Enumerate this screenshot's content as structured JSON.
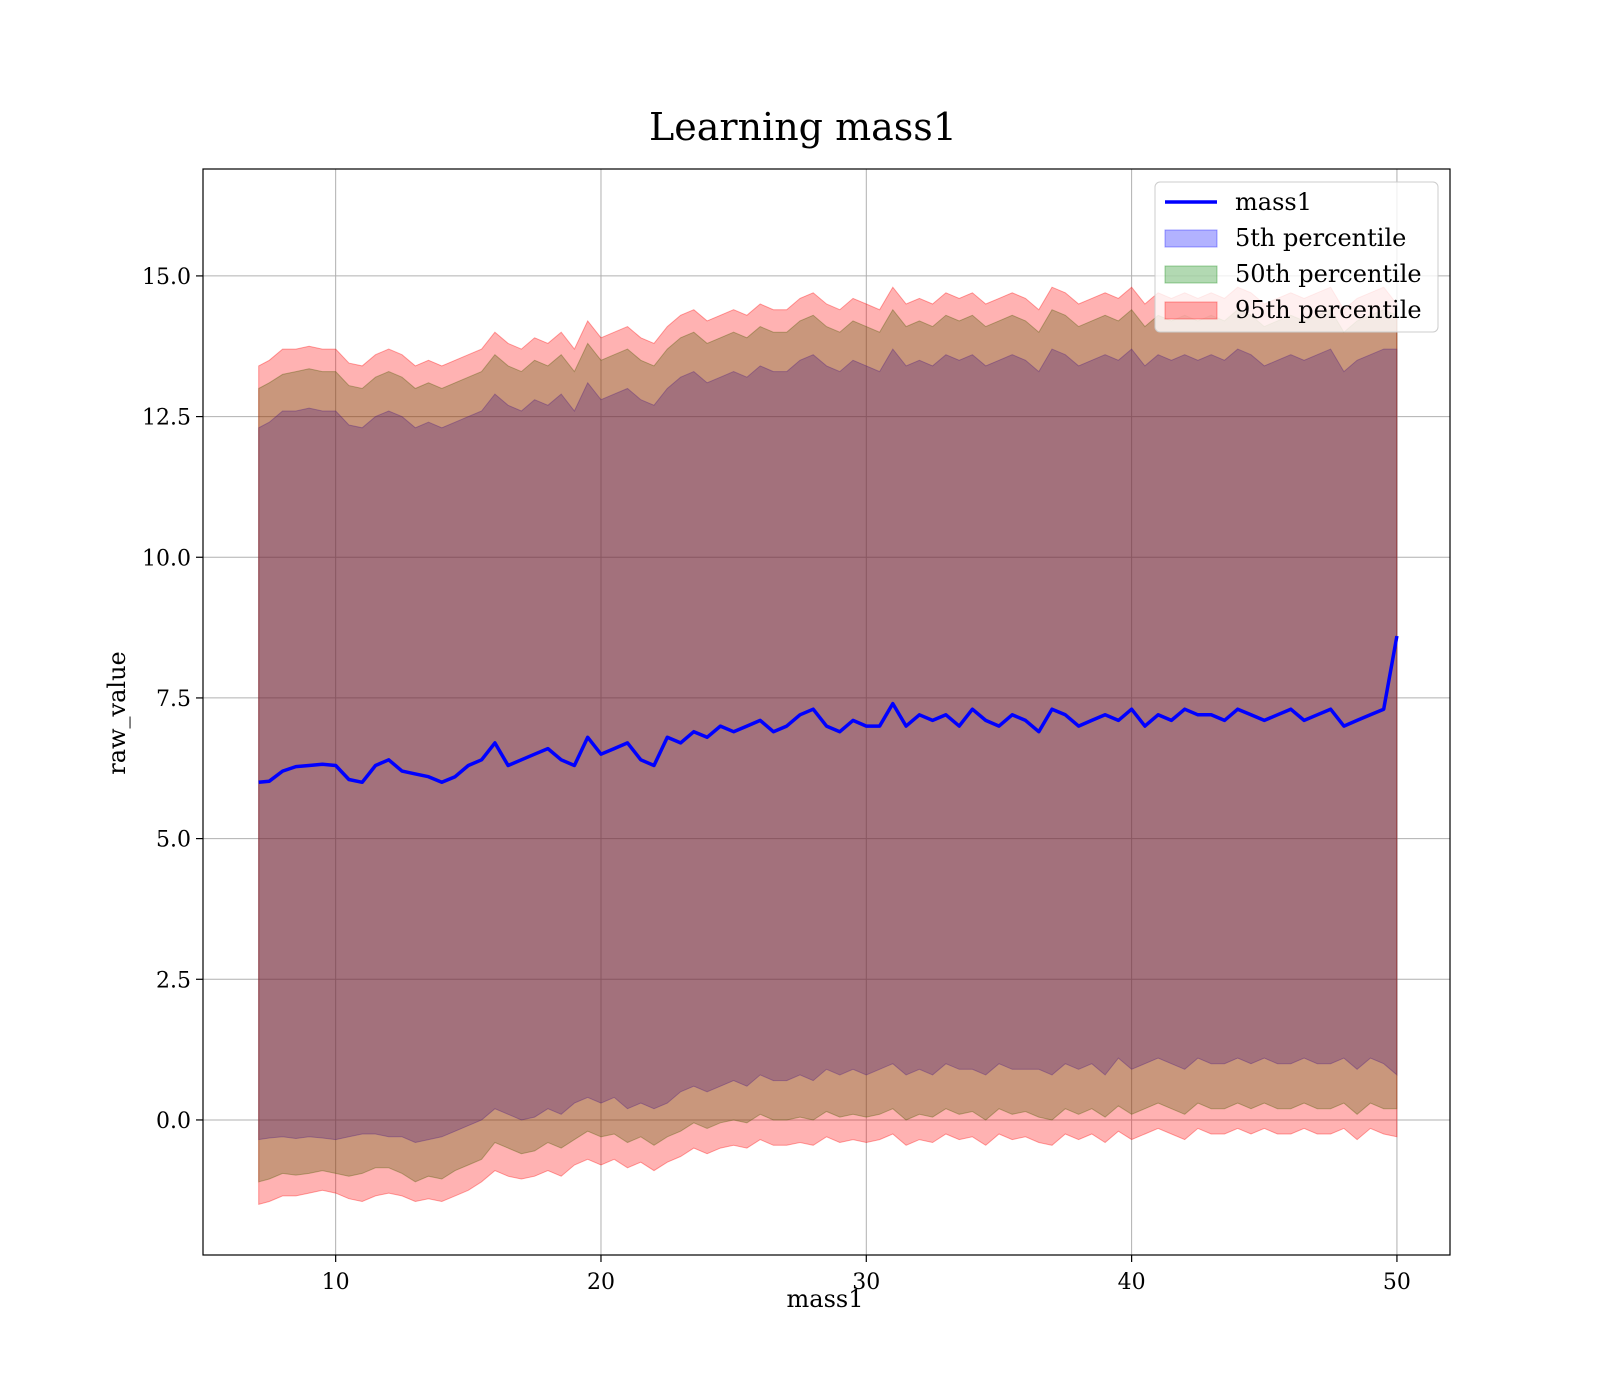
{
  "chart_data": {
    "type": "area",
    "title": "Learning mass1",
    "xlabel": "mass1",
    "ylabel": "raw_value",
    "xlim": [
      5,
      52
    ],
    "ylim": [
      -2.4,
      16.9
    ],
    "xticks": [
      10,
      20,
      30,
      40,
      50
    ],
    "yticks": [
      0.0,
      2.5,
      5.0,
      7.5,
      10.0,
      12.5,
      15.0
    ],
    "xtick_labels": [
      "10",
      "20",
      "30",
      "40",
      "50"
    ],
    "ytick_labels": [
      "0.0",
      "2.5",
      "5.0",
      "7.5",
      "10.0",
      "12.5",
      "15.0"
    ],
    "grid": true,
    "legend_position": "top-right",
    "x": [
      7.1,
      7.5,
      8.0,
      8.5,
      9.0,
      9.5,
      10.0,
      10.5,
      11.0,
      11.5,
      12.0,
      12.5,
      13.0,
      13.5,
      14.0,
      14.5,
      15.0,
      15.5,
      16.0,
      16.5,
      17.0,
      17.5,
      18.0,
      18.5,
      19.0,
      19.5,
      20.0,
      20.5,
      21.0,
      21.5,
      22.0,
      22.5,
      23.0,
      23.5,
      24.0,
      24.5,
      25.0,
      25.5,
      26.0,
      26.5,
      27.0,
      27.5,
      28.0,
      28.5,
      29.0,
      29.5,
      30.0,
      30.5,
      31.0,
      31.5,
      32.0,
      32.5,
      33.0,
      33.5,
      34.0,
      34.5,
      35.0,
      35.5,
      36.0,
      36.5,
      37.0,
      37.5,
      38.0,
      38.5,
      39.0,
      39.5,
      40.0,
      40.5,
      41.0,
      41.5,
      42.0,
      42.5,
      43.0,
      43.5,
      44.0,
      44.5,
      45.0,
      45.5,
      46.0,
      46.5,
      47.0,
      47.5,
      48.0,
      48.5,
      49.0,
      49.5,
      50.0
    ],
    "series": [
      {
        "name": "mass1",
        "kind": "line",
        "color": "#0000ff",
        "values": [
          6.0,
          6.02,
          6.2,
          6.28,
          6.3,
          6.32,
          6.3,
          6.05,
          6.0,
          6.3,
          6.4,
          6.2,
          6.15,
          6.1,
          6.0,
          6.1,
          6.3,
          6.4,
          6.7,
          6.3,
          6.4,
          6.5,
          6.6,
          6.4,
          6.3,
          6.8,
          6.5,
          6.6,
          6.7,
          6.4,
          6.3,
          6.8,
          6.7,
          6.9,
          6.8,
          7.0,
          6.9,
          7.0,
          7.1,
          6.9,
          7.0,
          7.2,
          7.3,
          7.0,
          6.9,
          7.1,
          7.0,
          7.0,
          7.4,
          7.0,
          7.2,
          7.1,
          7.2,
          7.0,
          7.3,
          7.1,
          7.0,
          7.2,
          7.1,
          6.9,
          7.3,
          7.2,
          7.0,
          7.1,
          7.2,
          7.1,
          7.3,
          7.0,
          7.2,
          7.1,
          7.3,
          7.2,
          7.2,
          7.1,
          7.3,
          7.2,
          7.1,
          7.2,
          7.3,
          7.1,
          7.2,
          7.3,
          7.0,
          7.1,
          7.2,
          7.3,
          8.6
        ]
      },
      {
        "name": "5th percentile",
        "kind": "band",
        "color": "#0000ff",
        "lower": [
          -0.35,
          -0.32,
          -0.3,
          -0.33,
          -0.3,
          -0.32,
          -0.35,
          -0.3,
          -0.25,
          -0.25,
          -0.3,
          -0.3,
          -0.4,
          -0.35,
          -0.3,
          -0.2,
          -0.1,
          0.0,
          0.2,
          0.1,
          0.0,
          0.05,
          0.2,
          0.1,
          0.3,
          0.4,
          0.3,
          0.4,
          0.2,
          0.3,
          0.2,
          0.3,
          0.5,
          0.6,
          0.5,
          0.6,
          0.7,
          0.6,
          0.8,
          0.7,
          0.7,
          0.8,
          0.7,
          0.9,
          0.8,
          0.9,
          0.8,
          0.9,
          1.0,
          0.8,
          0.9,
          0.8,
          1.0,
          0.9,
          0.9,
          0.8,
          1.0,
          0.9,
          0.9,
          0.9,
          0.8,
          1.0,
          0.9,
          1.0,
          0.8,
          1.1,
          0.9,
          1.0,
          1.1,
          1.0,
          0.9,
          1.1,
          1.0,
          1.0,
          1.1,
          1.0,
          1.1,
          1.0,
          1.0,
          1.1,
          1.0,
          1.0,
          1.1,
          0.9,
          1.1,
          1.0,
          0.8
        ],
        "upper": [
          12.3,
          12.4,
          12.6,
          12.6,
          12.65,
          12.6,
          12.6,
          12.35,
          12.3,
          12.5,
          12.6,
          12.5,
          12.3,
          12.4,
          12.3,
          12.4,
          12.5,
          12.6,
          12.9,
          12.7,
          12.6,
          12.8,
          12.7,
          12.9,
          12.6,
          13.1,
          12.8,
          12.9,
          13.0,
          12.8,
          12.7,
          13.0,
          13.2,
          13.3,
          13.1,
          13.2,
          13.3,
          13.2,
          13.4,
          13.3,
          13.3,
          13.5,
          13.6,
          13.4,
          13.3,
          13.5,
          13.4,
          13.3,
          13.7,
          13.4,
          13.5,
          13.4,
          13.6,
          13.5,
          13.6,
          13.4,
          13.5,
          13.6,
          13.5,
          13.3,
          13.7,
          13.6,
          13.4,
          13.5,
          13.6,
          13.5,
          13.7,
          13.4,
          13.6,
          13.5,
          13.6,
          13.5,
          13.6,
          13.5,
          13.7,
          13.6,
          13.4,
          13.5,
          13.6,
          13.5,
          13.6,
          13.7,
          13.3,
          13.5,
          13.6,
          13.7,
          13.7
        ]
      },
      {
        "name": "50th percentile",
        "kind": "band",
        "color": "#008000",
        "lower": [
          -1.1,
          -1.05,
          -0.95,
          -0.98,
          -0.95,
          -0.9,
          -0.95,
          -1.0,
          -0.95,
          -0.85,
          -0.85,
          -0.95,
          -1.1,
          -1.0,
          -1.05,
          -0.9,
          -0.8,
          -0.7,
          -0.4,
          -0.5,
          -0.6,
          -0.55,
          -0.4,
          -0.5,
          -0.35,
          -0.2,
          -0.3,
          -0.25,
          -0.4,
          -0.3,
          -0.45,
          -0.3,
          -0.2,
          -0.05,
          -0.15,
          -0.05,
          0.0,
          -0.05,
          0.1,
          0.0,
          0.0,
          0.05,
          0.0,
          0.15,
          0.05,
          0.1,
          0.05,
          0.1,
          0.2,
          0.0,
          0.1,
          0.05,
          0.2,
          0.1,
          0.15,
          0.0,
          0.2,
          0.1,
          0.15,
          0.05,
          0.0,
          0.2,
          0.1,
          0.2,
          0.05,
          0.25,
          0.1,
          0.2,
          0.3,
          0.2,
          0.1,
          0.3,
          0.2,
          0.2,
          0.3,
          0.2,
          0.3,
          0.2,
          0.2,
          0.3,
          0.2,
          0.2,
          0.3,
          0.1,
          0.3,
          0.2,
          0.2
        ],
        "upper": [
          13.0,
          13.1,
          13.25,
          13.3,
          13.35,
          13.3,
          13.3,
          13.05,
          13.0,
          13.2,
          13.3,
          13.2,
          13.0,
          13.1,
          13.0,
          13.1,
          13.2,
          13.3,
          13.6,
          13.4,
          13.3,
          13.5,
          13.4,
          13.6,
          13.3,
          13.8,
          13.5,
          13.6,
          13.7,
          13.5,
          13.4,
          13.7,
          13.9,
          14.0,
          13.8,
          13.9,
          14.0,
          13.9,
          14.1,
          14.0,
          14.0,
          14.2,
          14.3,
          14.1,
          14.0,
          14.2,
          14.1,
          14.0,
          14.4,
          14.1,
          14.2,
          14.1,
          14.3,
          14.2,
          14.3,
          14.1,
          14.2,
          14.3,
          14.2,
          14.0,
          14.4,
          14.3,
          14.1,
          14.2,
          14.3,
          14.2,
          14.4,
          14.1,
          14.3,
          14.2,
          14.3,
          14.2,
          14.3,
          14.2,
          14.4,
          14.3,
          14.1,
          14.2,
          14.3,
          14.2,
          14.3,
          14.4,
          14.0,
          14.2,
          14.3,
          14.4,
          14.3
        ]
      },
      {
        "name": "95th percentile",
        "kind": "band",
        "color": "#ff0000",
        "lower": [
          -1.5,
          -1.45,
          -1.35,
          -1.35,
          -1.3,
          -1.25,
          -1.3,
          -1.4,
          -1.45,
          -1.35,
          -1.3,
          -1.35,
          -1.45,
          -1.4,
          -1.45,
          -1.35,
          -1.25,
          -1.1,
          -0.9,
          -1.0,
          -1.05,
          -1.0,
          -0.9,
          -1.0,
          -0.8,
          -0.7,
          -0.8,
          -0.7,
          -0.85,
          -0.75,
          -0.9,
          -0.75,
          -0.65,
          -0.5,
          -0.6,
          -0.5,
          -0.45,
          -0.5,
          -0.35,
          -0.45,
          -0.45,
          -0.4,
          -0.45,
          -0.3,
          -0.4,
          -0.35,
          -0.4,
          -0.35,
          -0.25,
          -0.45,
          -0.35,
          -0.4,
          -0.25,
          -0.35,
          -0.3,
          -0.45,
          -0.25,
          -0.35,
          -0.3,
          -0.4,
          -0.45,
          -0.25,
          -0.35,
          -0.25,
          -0.4,
          -0.2,
          -0.35,
          -0.25,
          -0.15,
          -0.25,
          -0.35,
          -0.15,
          -0.25,
          -0.25,
          -0.15,
          -0.25,
          -0.15,
          -0.25,
          -0.25,
          -0.15,
          -0.25,
          -0.25,
          -0.15,
          -0.35,
          -0.15,
          -0.25,
          -0.3
        ],
        "upper": [
          13.4,
          13.5,
          13.7,
          13.7,
          13.75,
          13.7,
          13.7,
          13.45,
          13.4,
          13.6,
          13.7,
          13.6,
          13.4,
          13.5,
          13.4,
          13.5,
          13.6,
          13.7,
          14.0,
          13.8,
          13.7,
          13.9,
          13.8,
          14.0,
          13.7,
          14.2,
          13.9,
          14.0,
          14.1,
          13.9,
          13.8,
          14.1,
          14.3,
          14.4,
          14.2,
          14.3,
          14.4,
          14.3,
          14.5,
          14.4,
          14.4,
          14.6,
          14.7,
          14.5,
          14.4,
          14.6,
          14.5,
          14.4,
          14.8,
          14.5,
          14.6,
          14.5,
          14.7,
          14.6,
          14.7,
          14.5,
          14.6,
          14.7,
          14.6,
          14.4,
          14.8,
          14.7,
          14.5,
          14.6,
          14.7,
          14.6,
          14.8,
          14.5,
          14.7,
          14.6,
          14.7,
          14.6,
          14.7,
          14.6,
          14.8,
          14.7,
          14.5,
          14.6,
          14.7,
          14.6,
          14.7,
          14.8,
          14.4,
          14.6,
          14.7,
          14.8,
          14.5
        ]
      }
    ]
  }
}
